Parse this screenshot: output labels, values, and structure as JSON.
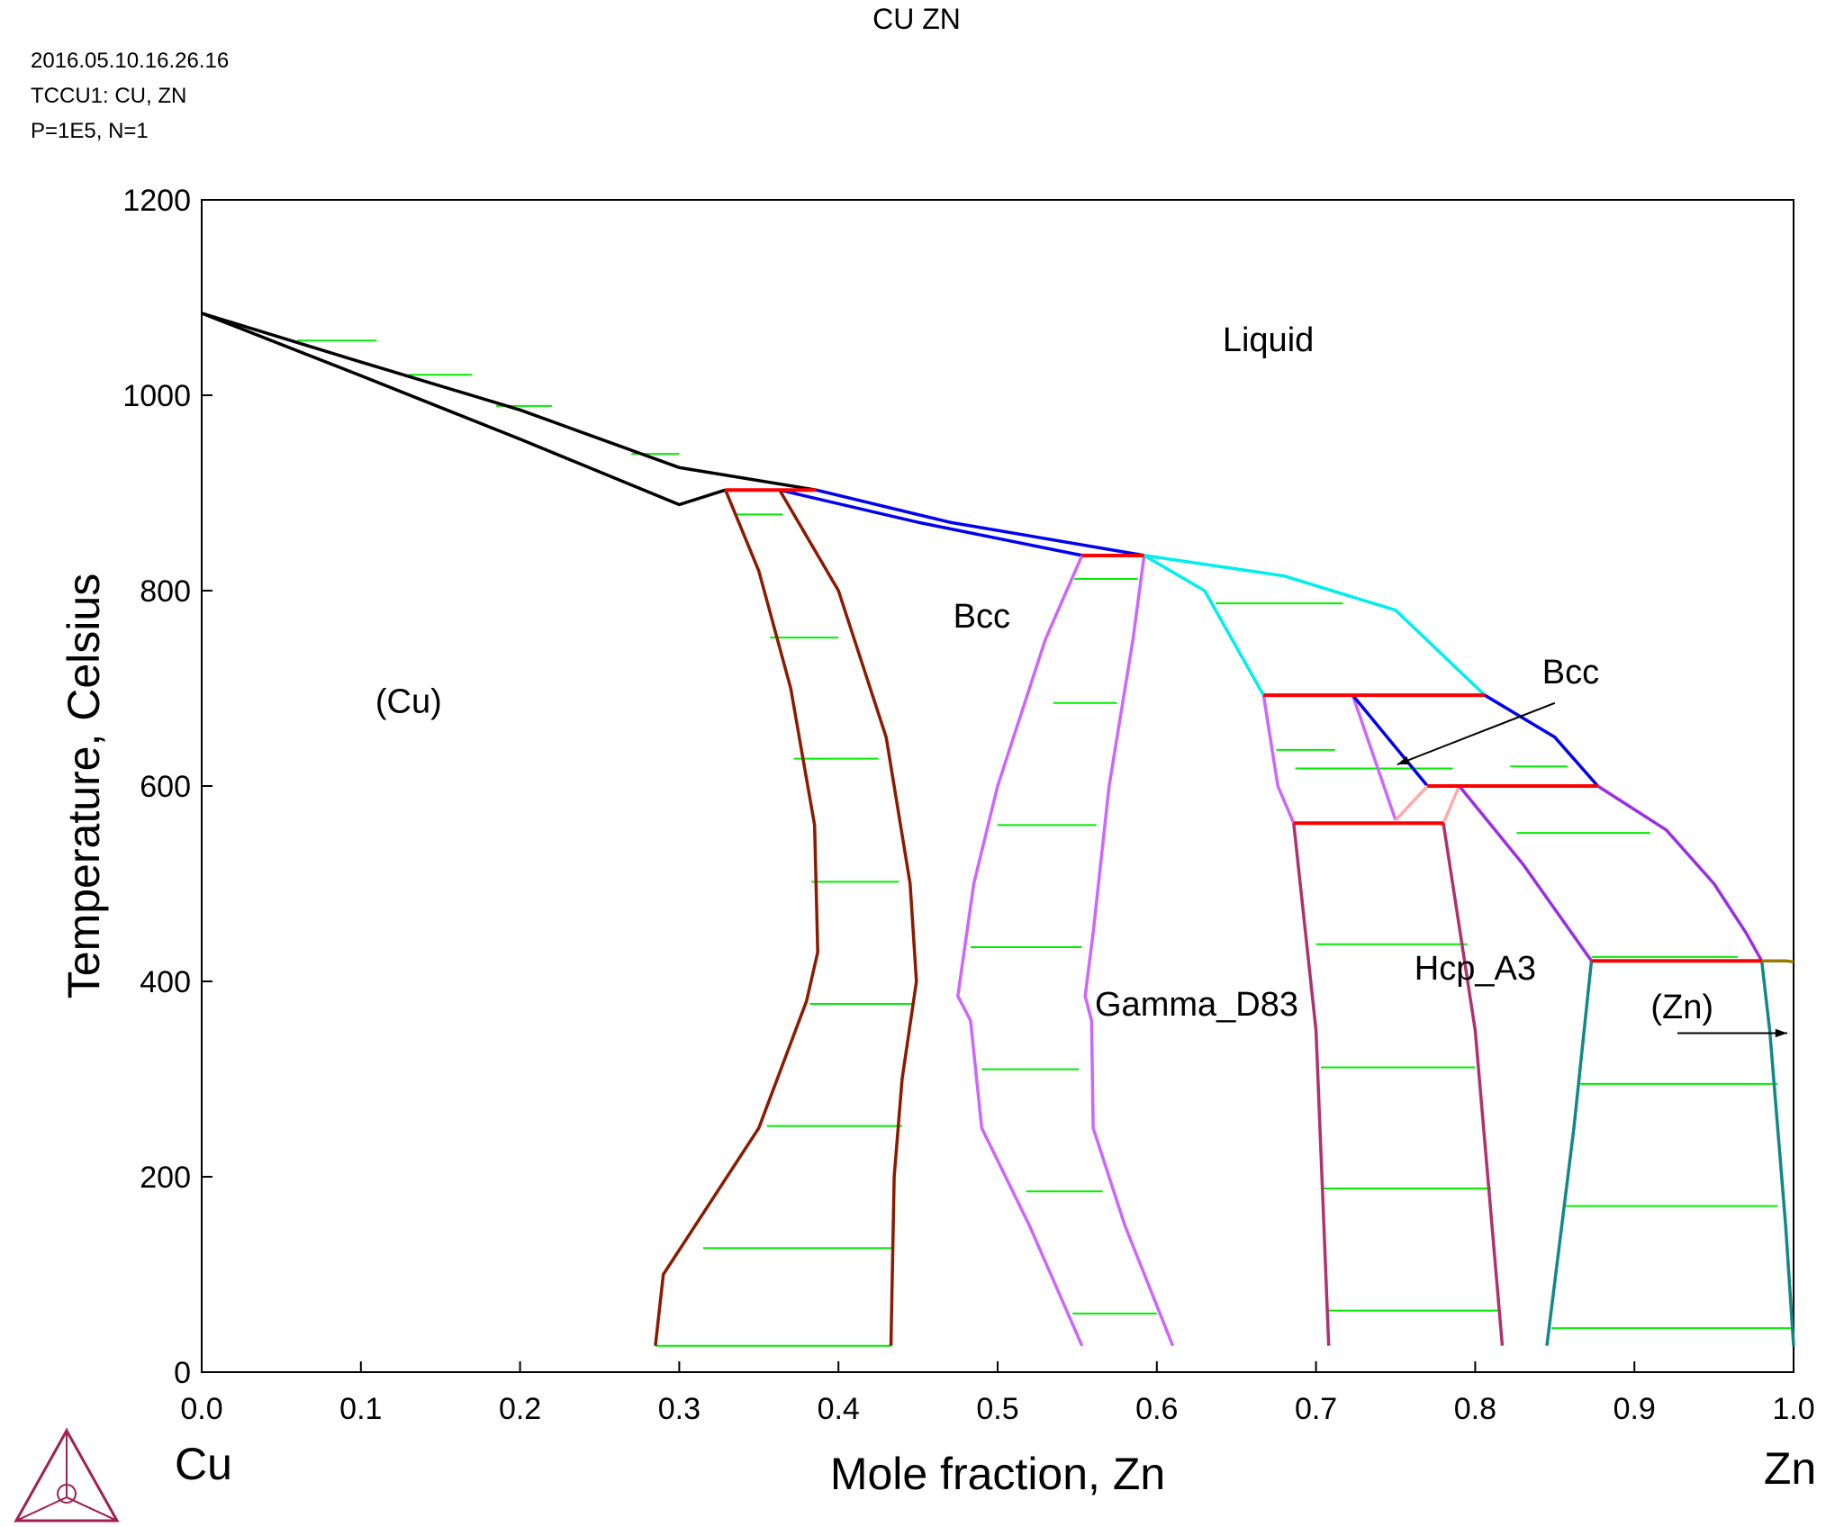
{
  "header": {
    "title": "CU ZN",
    "timestamp": "2016.05.10.16.26.16",
    "database": "TCCU1: CU, ZN",
    "conditions": "P=1E5, N=1"
  },
  "chart_data": {
    "type": "line",
    "title": "CU ZN",
    "xlabel": "Mole fraction, Zn",
    "ylabel": "Temperature, Celsius",
    "xlim": [
      0,
      1
    ],
    "ylim": [
      0,
      1200
    ],
    "x_ticks": [
      "0.0",
      "0.1",
      "0.2",
      "0.3",
      "0.4",
      "0.5",
      "0.6",
      "0.7",
      "0.8",
      "0.9",
      "1.0"
    ],
    "y_ticks": [
      "0",
      "200",
      "400",
      "600",
      "800",
      "1000",
      "1200"
    ],
    "x_end_labels": {
      "left": "Cu",
      "right": "Zn"
    },
    "grid": false,
    "phase_labels": [
      {
        "text": "Liquid",
        "x": 0.67,
        "y": 1045
      },
      {
        "text": "Bcc",
        "x": 0.49,
        "y": 762
      },
      {
        "text": "(Cu)",
        "x": 0.13,
        "y": 675
      },
      {
        "text": "Bcc",
        "x": 0.86,
        "y": 705
      },
      {
        "text": "Gamma_D83",
        "x": 0.625,
        "y": 365
      },
      {
        "text": "Hcp_A3",
        "x": 0.8,
        "y": 402
      },
      {
        "text": "(Zn)",
        "x": 0.93,
        "y": 362
      }
    ],
    "arrows": [
      {
        "from": [
          0.85,
          685
        ],
        "to": [
          0.751,
          622
        ]
      },
      {
        "from": [
          0.927,
          347
        ],
        "to": [
          0.996,
          347
        ]
      }
    ],
    "colors": {
      "liquidus_cu": "#000000",
      "bcc_boundary": "#0000ee",
      "liquidus_zn": "#00eeee",
      "cu_fcc_boundary": "#8b1a00",
      "gamma_boundary": "#cc66ff",
      "gamma_zn_side": "#ffaaaa",
      "eps_boundary": "#b03070",
      "hcp_liquidus": "#9a2ee6",
      "zn_solvus": "#118888",
      "zn_liquidus": "#9a7a00",
      "invariant": "#ff0000",
      "tieline": "#00ee00"
    },
    "series": [
      {
        "id": "liquidus-cu",
        "color": "liquidus_cu",
        "points": [
          [
            0,
            1084
          ],
          [
            0.1,
            1034
          ],
          [
            0.2,
            985
          ],
          [
            0.3,
            926
          ],
          [
            0.386,
            903
          ]
        ]
      },
      {
        "id": "solidus-cu",
        "color": "liquidus_cu",
        "points": [
          [
            0,
            1084
          ],
          [
            0.1,
            1020
          ],
          [
            0.2,
            955
          ],
          [
            0.3,
            888
          ],
          [
            0.329,
            903
          ]
        ]
      },
      {
        "id": "bcc-liquidus",
        "color": "bcc_boundary",
        "points": [
          [
            0.386,
            903
          ],
          [
            0.47,
            870
          ],
          [
            0.592,
            836
          ]
        ]
      },
      {
        "id": "bcc-solidus",
        "color": "bcc_boundary",
        "points": [
          [
            0.363,
            903
          ],
          [
            0.45,
            870
          ],
          [
            0.553,
            836
          ]
        ]
      },
      {
        "id": "cu-solvus-fcc",
        "color": "cu_fcc_boundary",
        "points": [
          [
            0.329,
            903
          ],
          [
            0.35,
            820
          ],
          [
            0.37,
            700
          ],
          [
            0.385,
            560
          ],
          [
            0.387,
            430
          ],
          [
            0.38,
            380
          ],
          [
            0.35,
            250
          ],
          [
            0.29,
            100
          ],
          [
            0.285,
            27
          ]
        ]
      },
      {
        "id": "cu-solvus-bcc",
        "color": "cu_fcc_boundary",
        "points": [
          [
            0.363,
            903
          ],
          [
            0.4,
            800
          ],
          [
            0.43,
            650
          ],
          [
            0.445,
            500
          ],
          [
            0.449,
            400
          ],
          [
            0.44,
            300
          ],
          [
            0.435,
            200
          ],
          [
            0.433,
            27
          ]
        ]
      },
      {
        "id": "bcc-gamma-left",
        "color": "gamma_boundary",
        "points": [
          [
            0.553,
            836
          ],
          [
            0.53,
            750
          ],
          [
            0.5,
            600
          ],
          [
            0.485,
            500
          ],
          [
            0.475,
            385
          ],
          [
            0.483,
            360
          ],
          [
            0.49,
            250
          ],
          [
            0.52,
            150
          ],
          [
            0.553,
            27
          ]
        ]
      },
      {
        "id": "gamma-right",
        "color": "gamma_boundary",
        "points": [
          [
            0.592,
            836
          ],
          [
            0.585,
            750
          ],
          [
            0.57,
            600
          ],
          [
            0.56,
            450
          ],
          [
            0.555,
            385
          ],
          [
            0.559,
            360
          ],
          [
            0.56,
            250
          ],
          [
            0.58,
            150
          ],
          [
            0.61,
            27
          ]
        ]
      },
      {
        "id": "liquidus-zn-side",
        "color": "liquidus_zn",
        "points": [
          [
            0.592,
            836
          ],
          [
            0.63,
            800
          ],
          [
            0.667,
            693
          ]
        ]
      },
      {
        "id": "liquidus-zn-side-2",
        "color": "liquidus_zn",
        "points": [
          [
            0.592,
            836
          ],
          [
            0.68,
            815
          ],
          [
            0.75,
            780
          ],
          [
            0.806,
            693
          ]
        ]
      },
      {
        "id": "delta-bcc-left",
        "color": "gamma_boundary",
        "points": [
          [
            0.667,
            693
          ],
          [
            0.676,
            600
          ],
          [
            0.686,
            562
          ]
        ]
      },
      {
        "id": "delta-bcc-inner",
        "color": "gamma_boundary",
        "points": [
          [
            0.723,
            693
          ],
          [
            0.75,
            565
          ]
        ]
      },
      {
        "id": "delta-bcc-right",
        "color": "bcc_boundary",
        "points": [
          [
            0.723,
            693
          ],
          [
            0.77,
            600
          ]
        ]
      },
      {
        "id": "delta-upper",
        "color": "bcc_boundary",
        "points": [
          [
            0.806,
            693
          ],
          [
            0.85,
            650
          ],
          [
            0.877,
            600
          ]
        ]
      },
      {
        "id": "delta-pink-left",
        "color": "gamma_zn_side",
        "points": [
          [
            0.75,
            565
          ],
          [
            0.77,
            600
          ]
        ]
      },
      {
        "id": "delta-pink-right",
        "color": "gamma_zn_side",
        "points": [
          [
            0.78,
            562
          ],
          [
            0.79,
            600
          ]
        ]
      },
      {
        "id": "eps-left",
        "color": "eps_boundary",
        "points": [
          [
            0.686,
            562
          ],
          [
            0.7,
            350
          ],
          [
            0.708,
            27
          ]
        ]
      },
      {
        "id": "eps-right",
        "color": "eps_boundary",
        "points": [
          [
            0.78,
            562
          ],
          [
            0.8,
            350
          ],
          [
            0.817,
            27
          ]
        ]
      },
      {
        "id": "hcp-liquidus",
        "color": "hcp_liquidus",
        "points": [
          [
            0.877,
            600
          ],
          [
            0.92,
            555
          ],
          [
            0.95,
            500
          ],
          [
            0.97,
            450
          ],
          [
            0.98,
            421
          ]
        ]
      },
      {
        "id": "hcp-solidus",
        "color": "hcp_liquidus",
        "points": [
          [
            0.79,
            600
          ],
          [
            0.83,
            520
          ],
          [
            0.873,
            421
          ]
        ]
      },
      {
        "id": "zn-solvus",
        "color": "zn_solvus",
        "points": [
          [
            0.873,
            421
          ],
          [
            0.862,
            250
          ],
          [
            0.845,
            27
          ]
        ]
      },
      {
        "id": "zn-solvus-right",
        "color": "zn_solvus",
        "points": [
          [
            0.98,
            421
          ],
          [
            0.985,
            350
          ],
          [
            0.995,
            150
          ],
          [
            1.0,
            27
          ]
        ]
      },
      {
        "id": "zn-liquidus",
        "color": "zn_liquidus",
        "points": [
          [
            0.98,
            421
          ],
          [
            0.995,
            421
          ],
          [
            1.0,
            420
          ]
        ]
      }
    ],
    "invariants": [
      {
        "x1": 0.329,
        "x2": 0.386,
        "y": 903
      },
      {
        "x1": 0.553,
        "x2": 0.592,
        "y": 836
      },
      {
        "x1": 0.667,
        "x2": 0.806,
        "y": 693
      },
      {
        "x1": 0.77,
        "x2": 0.877,
        "y": 600
      },
      {
        "x1": 0.686,
        "x2": 0.78,
        "y": 562
      },
      {
        "x1": 0.873,
        "x2": 0.98,
        "y": 421
      }
    ],
    "tielines": [
      [
        0.06,
        0.11,
        1056
      ],
      [
        0.13,
        0.17,
        1021
      ],
      [
        0.185,
        0.22,
        989
      ],
      [
        0.27,
        0.3,
        940
      ],
      [
        0.335,
        0.365,
        878
      ],
      [
        0.357,
        0.4,
        752
      ],
      [
        0.372,
        0.425,
        628
      ],
      [
        0.383,
        0.438,
        502
      ],
      [
        0.382,
        0.447,
        377
      ],
      [
        0.355,
        0.44,
        252
      ],
      [
        0.315,
        0.435,
        127
      ],
      [
        0.285,
        0.433,
        27
      ],
      [
        0.548,
        0.588,
        812
      ],
      [
        0.535,
        0.575,
        685
      ],
      [
        0.5,
        0.562,
        560
      ],
      [
        0.483,
        0.553,
        435
      ],
      [
        0.49,
        0.551,
        310
      ],
      [
        0.518,
        0.566,
        185
      ],
      [
        0.547,
        0.6,
        60
      ],
      [
        0.637,
        0.717,
        787
      ],
      [
        0.675,
        0.712,
        637
      ],
      [
        0.687,
        0.786,
        618
      ],
      [
        0.822,
        0.858,
        620
      ],
      [
        0.826,
        0.91,
        552
      ],
      [
        0.7,
        0.795,
        438
      ],
      [
        0.703,
        0.8,
        312
      ],
      [
        0.703,
        0.81,
        188
      ],
      [
        0.707,
        0.815,
        63
      ],
      [
        0.873,
        0.965,
        425
      ],
      [
        0.866,
        0.99,
        295
      ],
      [
        0.857,
        0.99,
        170
      ],
      [
        0.848,
        0.999,
        45
      ]
    ]
  }
}
